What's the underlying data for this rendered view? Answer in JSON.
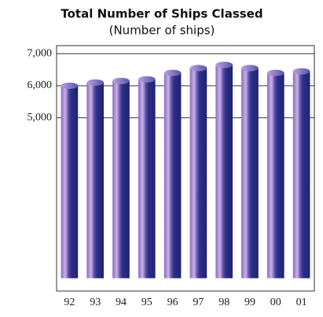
{
  "chart_data": {
    "type": "bar",
    "title": "Total Number of Ships Classed",
    "subtitle": "(Number of ships)",
    "categories": [
      "92",
      "93",
      "94",
      "95",
      "96",
      "97",
      "98",
      "99",
      "00",
      "01"
    ],
    "values": [
      6000,
      6100,
      6150,
      6200,
      6400,
      6550,
      6650,
      6550,
      6400,
      6450
    ],
    "color": "#2b2f86",
    "ylim": [
      -400,
      7250
    ],
    "yticks": [
      {
        "value": 5000,
        "label": "5,000"
      },
      {
        "value": 6000,
        "label": "6,000"
      },
      {
        "value": 7000,
        "label": "7,000"
      }
    ],
    "grid": true
  }
}
